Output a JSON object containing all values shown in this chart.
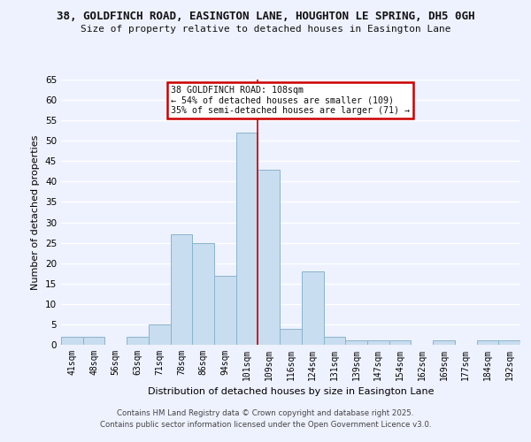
{
  "title_line1": "38, GOLDFINCH ROAD, EASINGTON LANE, HOUGHTON LE SPRING, DH5 0GH",
  "title_line2": "Size of property relative to detached houses in Easington Lane",
  "xlabel": "Distribution of detached houses by size in Easington Lane",
  "ylabel": "Number of detached properties",
  "bin_labels": [
    "41sqm",
    "48sqm",
    "56sqm",
    "63sqm",
    "71sqm",
    "78sqm",
    "86sqm",
    "94sqm",
    "101sqm",
    "109sqm",
    "116sqm",
    "124sqm",
    "131sqm",
    "139sqm",
    "147sqm",
    "154sqm",
    "162sqm",
    "169sqm",
    "177sqm",
    "184sqm",
    "192sqm"
  ],
  "bar_values": [
    2,
    2,
    0,
    2,
    5,
    27,
    25,
    17,
    52,
    43,
    4,
    18,
    2,
    1,
    1,
    1,
    0,
    1,
    0,
    1,
    1
  ],
  "bar_color": "#c8ddef",
  "bar_edge_color": "#8ab4cc",
  "vline_color": "#cc0000",
  "annotation_title": "38 GOLDFINCH ROAD: 108sqm",
  "annotation_line1": "← 54% of detached houses are smaller (109)",
  "annotation_line2": "35% of semi-detached houses are larger (71) →",
  "annotation_box_color": "#ffffff",
  "annotation_box_edge_color": "#cc0000",
  "ylim": [
    0,
    65
  ],
  "yticks": [
    0,
    5,
    10,
    15,
    20,
    25,
    30,
    35,
    40,
    45,
    50,
    55,
    60,
    65
  ],
  "background_color": "#eef2ff",
  "grid_color": "#ffffff",
  "footer_line1": "Contains HM Land Registry data © Crown copyright and database right 2025.",
  "footer_line2": "Contains public sector information licensed under the Open Government Licence v3.0."
}
